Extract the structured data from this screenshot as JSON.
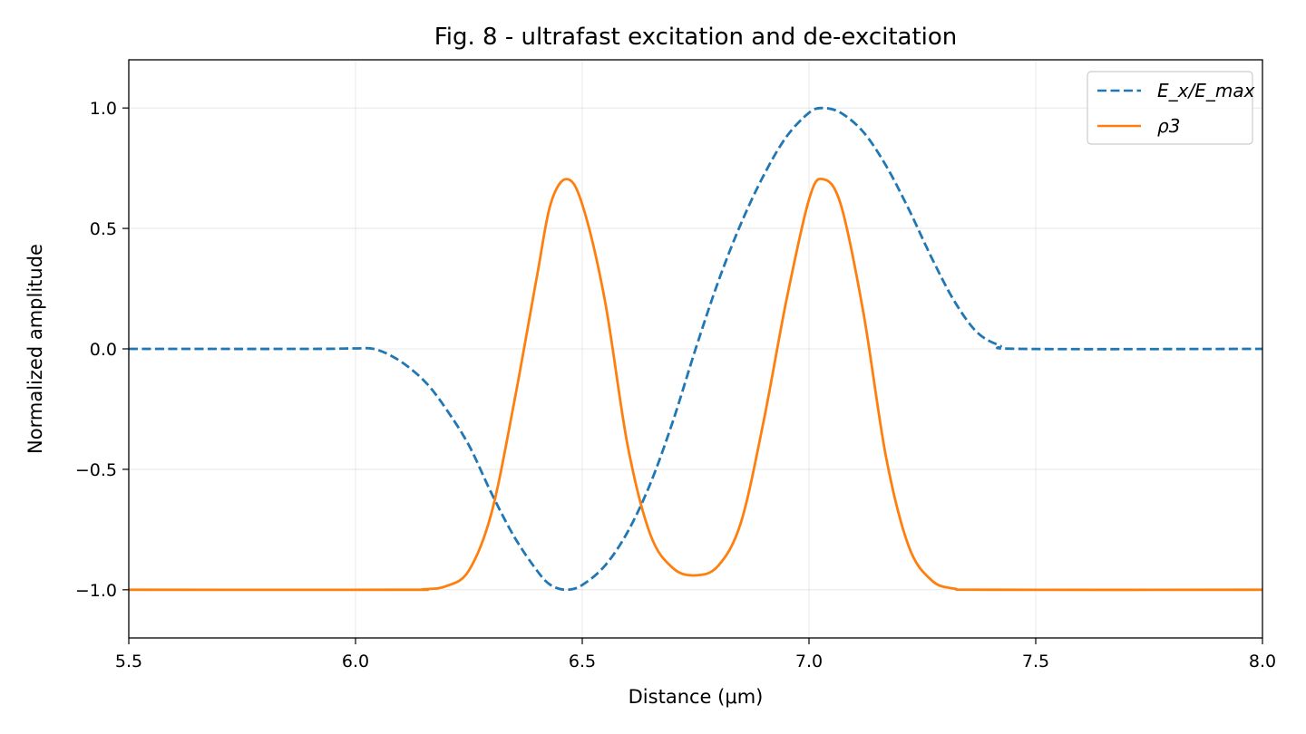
{
  "chart_data": {
    "type": "line",
    "title": "Fig. 8 - ultrafast excitation and de-excitation",
    "xlabel": "Distance (μm)",
    "ylabel": "Normalized amplitude",
    "xlim": [
      5.5,
      8.0
    ],
    "ylim": [
      -1.2,
      1.2
    ],
    "xticks": [
      5.5,
      6.0,
      6.5,
      7.0,
      7.5,
      8.0
    ],
    "xtick_labels": [
      "5.5",
      "6.0",
      "6.5",
      "7.0",
      "7.5",
      "8.0"
    ],
    "yticks": [
      1.0,
      0.5,
      0.0,
      -0.5,
      -1.0
    ],
    "ytick_labels": [
      "1.0",
      "0.5",
      "0.0",
      "−0.5",
      "−1.0"
    ],
    "grid": true,
    "legend": {
      "placement": "top-right",
      "entries": [
        {
          "label": "E_x/E_max",
          "style": "dashed",
          "color": "#1f77b4"
        },
        {
          "label": "ρ3",
          "style": "solid",
          "color": "#ff7f0e"
        }
      ]
    },
    "series": [
      {
        "name": "E_x/E_max",
        "color": "#1f77b4",
        "style": "dashed",
        "points": [
          [
            5.5,
            0.0
          ],
          [
            5.9,
            0.0
          ],
          [
            6.0,
            0.002
          ],
          [
            6.04,
            0.0
          ],
          [
            6.08,
            -0.03
          ],
          [
            6.12,
            -0.08
          ],
          [
            6.16,
            -0.15
          ],
          [
            6.2,
            -0.25
          ],
          [
            6.25,
            -0.4
          ],
          [
            6.3,
            -0.6
          ],
          [
            6.35,
            -0.78
          ],
          [
            6.4,
            -0.92
          ],
          [
            6.43,
            -0.98
          ],
          [
            6.465,
            -1.0
          ],
          [
            6.5,
            -0.98
          ],
          [
            6.55,
            -0.9
          ],
          [
            6.6,
            -0.76
          ],
          [
            6.65,
            -0.56
          ],
          [
            6.7,
            -0.3
          ],
          [
            6.75,
            0.0
          ],
          [
            6.8,
            0.28
          ],
          [
            6.85,
            0.52
          ],
          [
            6.9,
            0.72
          ],
          [
            6.95,
            0.88
          ],
          [
            7.0,
            0.98
          ],
          [
            7.03,
            1.0
          ],
          [
            7.07,
            0.98
          ],
          [
            7.12,
            0.9
          ],
          [
            7.17,
            0.76
          ],
          [
            7.22,
            0.58
          ],
          [
            7.27,
            0.38
          ],
          [
            7.32,
            0.2
          ],
          [
            7.37,
            0.07
          ],
          [
            7.42,
            0.015
          ],
          [
            7.47,
            0.0
          ],
          [
            8.0,
            0.0
          ]
        ]
      },
      {
        "name": "ρ3",
        "color": "#ff7f0e",
        "style": "solid",
        "points": [
          [
            5.5,
            -1.0
          ],
          [
            6.1,
            -1.0
          ],
          [
            6.15,
            -0.998
          ],
          [
            6.2,
            -0.985
          ],
          [
            6.25,
            -0.92
          ],
          [
            6.3,
            -0.68
          ],
          [
            6.35,
            -0.22
          ],
          [
            6.4,
            0.3
          ],
          [
            6.43,
            0.6
          ],
          [
            6.465,
            0.705
          ],
          [
            6.5,
            0.6
          ],
          [
            6.55,
            0.2
          ],
          [
            6.6,
            -0.4
          ],
          [
            6.65,
            -0.77
          ],
          [
            6.7,
            -0.91
          ],
          [
            6.75,
            -0.94
          ],
          [
            6.8,
            -0.9
          ],
          [
            6.85,
            -0.72
          ],
          [
            6.9,
            -0.3
          ],
          [
            6.95,
            0.2
          ],
          [
            7.0,
            0.62
          ],
          [
            7.03,
            0.705
          ],
          [
            7.07,
            0.6
          ],
          [
            7.12,
            0.15
          ],
          [
            7.17,
            -0.45
          ],
          [
            7.22,
            -0.82
          ],
          [
            7.27,
            -0.96
          ],
          [
            7.32,
            -0.995
          ],
          [
            7.4,
            -1.0
          ],
          [
            8.0,
            -1.0
          ]
        ]
      }
    ]
  }
}
